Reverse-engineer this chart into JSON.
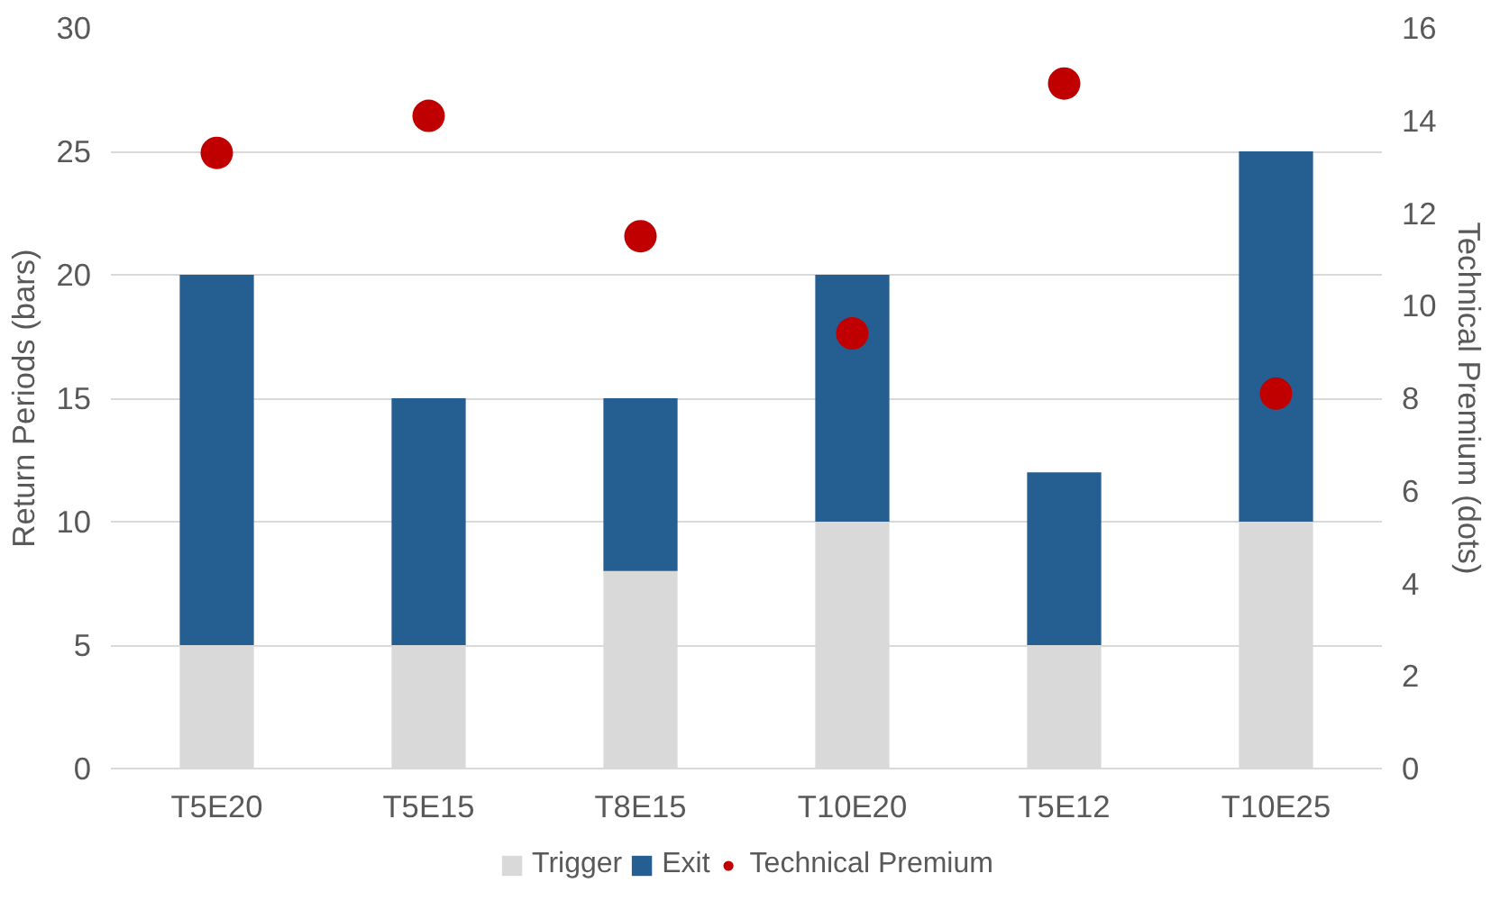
{
  "chart_data": {
    "type": "bar",
    "stacked": true,
    "categories": [
      "T5E20",
      "T5E15",
      "T8E15",
      "T10E20",
      "T5E12",
      "T10E25"
    ],
    "ylabel": "Return Periods (bars)",
    "y2label": "Technical Premium (dots)",
    "ylim": [
      0,
      30
    ],
    "yticks": [
      0,
      5,
      10,
      15,
      20,
      25,
      30
    ],
    "y2lim": [
      0,
      16
    ],
    "y2ticks": [
      0,
      2,
      4,
      6,
      8,
      10,
      12,
      14,
      16
    ],
    "grid": "y",
    "legend": "bottom",
    "marker": "circle",
    "series": [
      {
        "name": "Trigger",
        "color": "#d9d9d9",
        "values": [
          5,
          5,
          8,
          10,
          5,
          10
        ]
      },
      {
        "name": "Exit",
        "color": "#255e91",
        "values": [
          15,
          10,
          7,
          10,
          7,
          15
        ]
      },
      {
        "name": "Technical Premium",
        "type": "scatter",
        "axis": "y2",
        "color": "#c00000",
        "x": [
          "T5E20",
          "T5E15",
          "T8E15",
          "T10E20",
          "T5E12",
          "T10E25"
        ],
        "values": [
          13.3,
          14.1,
          11.5,
          9.4,
          14.8,
          8.1
        ]
      }
    ]
  }
}
